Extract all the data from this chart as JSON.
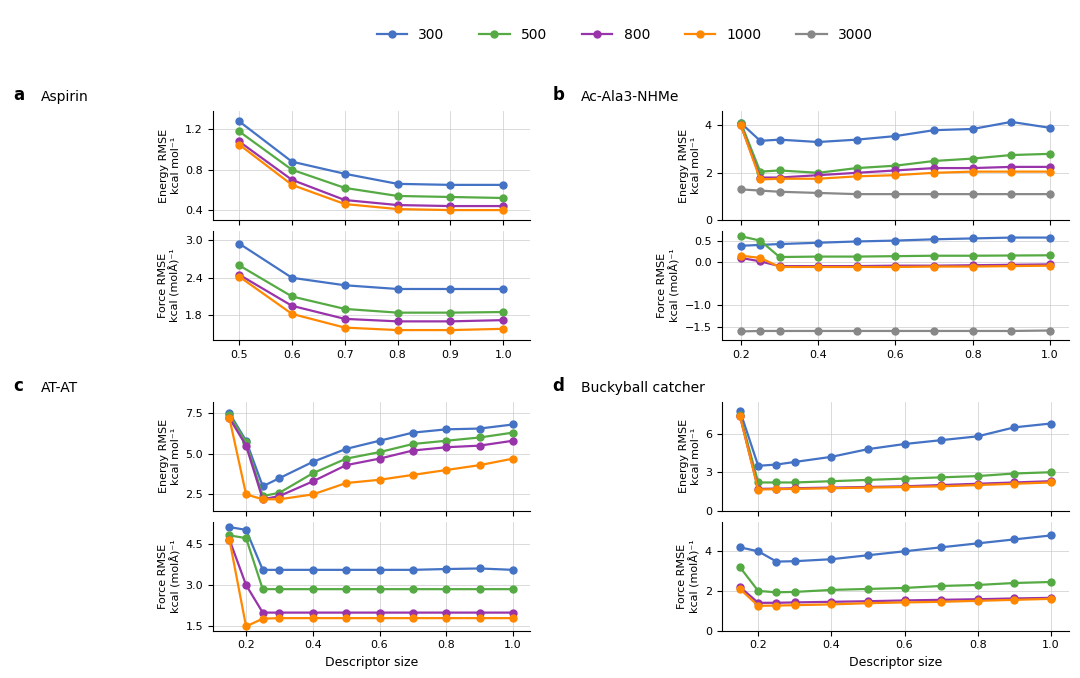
{
  "colors": {
    "300": "#4472C4",
    "500": "#55AA44",
    "800": "#9933AA",
    "1000": "#FF8800",
    "3000": "#888888"
  },
  "legend_labels": [
    "300",
    "500",
    "800",
    "1000",
    "3000"
  ],
  "xlabel": "Descriptor size",
  "a_energy": {
    "x": [
      1.0,
      0.9,
      0.8,
      0.7,
      0.6,
      0.5
    ],
    "300": [
      0.65,
      0.65,
      0.66,
      0.76,
      0.88,
      1.28
    ],
    "500": [
      0.52,
      0.53,
      0.54,
      0.62,
      0.8,
      1.18
    ],
    "800": [
      0.44,
      0.44,
      0.45,
      0.5,
      0.7,
      1.08
    ],
    "1000": [
      0.4,
      0.4,
      0.41,
      0.46,
      0.65,
      1.05
    ],
    "ylabel": "Energy RMSE\nkcal mol⁻¹",
    "ylim": [
      0.3,
      1.38
    ],
    "yticks": [
      0.4,
      0.8,
      1.2
    ],
    "xlim": [
      1.05,
      0.45
    ],
    "xticks": [
      1.0,
      0.9,
      0.8,
      0.7,
      0.6,
      0.5
    ]
  },
  "a_force": {
    "x": [
      1.0,
      0.9,
      0.8,
      0.7,
      0.6,
      0.5
    ],
    "300": [
      2.22,
      2.22,
      2.22,
      2.28,
      2.4,
      2.95
    ],
    "500": [
      1.85,
      1.84,
      1.84,
      1.9,
      2.1,
      2.6
    ],
    "800": [
      1.72,
      1.7,
      1.7,
      1.74,
      1.95,
      2.45
    ],
    "1000": [
      1.58,
      1.56,
      1.56,
      1.6,
      1.82,
      2.42
    ],
    "ylabel": "Force RMSE\nkcal (molÅ)⁻¹",
    "ylim": [
      1.4,
      3.15
    ],
    "yticks": [
      1.8,
      2.4,
      3.0
    ],
    "xlim": [
      1.05,
      0.45
    ],
    "xticks": [
      1.0,
      0.9,
      0.8,
      0.7,
      0.6,
      0.5
    ],
    "xticklabels": [
      "1.0",
      "0.9",
      "0.8",
      "0.7",
      "0.6",
      "0.5"
    ]
  },
  "b_energy": {
    "x": [
      1.0,
      0.9,
      0.8,
      0.7,
      0.6,
      0.5,
      0.4,
      0.3,
      0.25,
      0.2
    ],
    "300": [
      3.9,
      4.15,
      3.85,
      3.8,
      3.55,
      3.4,
      3.3,
      3.4,
      3.35,
      4.1
    ],
    "500": [
      2.8,
      2.75,
      2.6,
      2.5,
      2.3,
      2.2,
      2.0,
      2.1,
      2.05,
      4.1
    ],
    "800": [
      2.25,
      2.25,
      2.2,
      2.2,
      2.1,
      2.0,
      1.9,
      1.8,
      1.8,
      4.0
    ],
    "1000": [
      2.05,
      2.05,
      2.05,
      2.0,
      1.9,
      1.85,
      1.75,
      1.75,
      1.72,
      4.0
    ],
    "3000": [
      1.1,
      1.1,
      1.1,
      1.1,
      1.1,
      1.1,
      1.15,
      1.2,
      1.25,
      1.3
    ],
    "ylabel": "Energy RMSE\nkcal mol⁻¹",
    "ylim": [
      0,
      4.6
    ],
    "yticks": [
      0,
      2,
      4
    ],
    "xlim": [
      1.05,
      0.15
    ],
    "xticks": [
      1.0,
      0.8,
      0.6,
      0.4,
      0.2
    ]
  },
  "b_force": {
    "x": [
      1.0,
      0.9,
      0.8,
      0.7,
      0.6,
      0.5,
      0.4,
      0.3,
      0.25,
      0.2
    ],
    "300": [
      0.57,
      0.57,
      0.55,
      0.53,
      0.5,
      0.48,
      0.45,
      0.42,
      0.4,
      0.38
    ],
    "500": [
      0.16,
      0.155,
      0.15,
      0.15,
      0.14,
      0.13,
      0.13,
      0.12,
      0.5,
      0.6
    ],
    "800": [
      -0.05,
      -0.06,
      -0.07,
      -0.08,
      -0.08,
      -0.09,
      -0.09,
      -0.09,
      0.02,
      0.1
    ],
    "1000": [
      -0.08,
      -0.09,
      -0.1,
      -0.1,
      -0.11,
      -0.11,
      -0.11,
      -0.11,
      0.1,
      0.15
    ],
    "3000": [
      -1.58,
      -1.59,
      -1.59,
      -1.59,
      -1.59,
      -1.59,
      -1.59,
      -1.59,
      -1.59,
      -1.6
    ],
    "ylabel": "Force RMSE\nkcal (molÅ)⁻¹",
    "ylim": [
      -1.8,
      0.72
    ],
    "yticks": [
      -1.5,
      -1.0,
      0.0,
      0.5
    ],
    "xlim": [
      1.05,
      0.15
    ],
    "xticks": [
      1.0,
      0.8,
      0.6,
      0.4,
      0.2
    ],
    "xticklabels": [
      "1.0",
      "0.8",
      "0.6",
      "0.4",
      "0.2"
    ]
  },
  "c_energy": {
    "x": [
      1.0,
      0.9,
      0.8,
      0.7,
      0.6,
      0.5,
      0.4,
      0.3,
      0.25,
      0.2,
      0.15
    ],
    "300": [
      6.8,
      6.55,
      6.5,
      6.3,
      5.8,
      5.3,
      4.5,
      3.5,
      3.0,
      5.8,
      7.5
    ],
    "500": [
      6.3,
      6.0,
      5.8,
      5.6,
      5.1,
      4.7,
      3.8,
      2.6,
      2.4,
      5.7,
      7.4
    ],
    "800": [
      5.8,
      5.5,
      5.4,
      5.2,
      4.7,
      4.3,
      3.3,
      2.4,
      2.2,
      5.5,
      7.2
    ],
    "1000": [
      4.7,
      4.3,
      4.0,
      3.7,
      3.4,
      3.2,
      2.5,
      2.2,
      2.2,
      2.5,
      7.2
    ],
    "ylabel": "Energy RMSE\nkcal mol⁻¹",
    "ylim": [
      1.5,
      8.2
    ],
    "yticks": [
      2.5,
      5.0,
      7.5
    ],
    "xlim": [
      1.05,
      0.1
    ],
    "xticks": [
      1.0,
      0.8,
      0.6,
      0.4,
      0.2
    ]
  },
  "c_force": {
    "x": [
      1.0,
      0.9,
      0.8,
      0.7,
      0.6,
      0.5,
      0.4,
      0.3,
      0.25,
      0.2,
      0.15
    ],
    "300": [
      3.55,
      3.6,
      3.58,
      3.55,
      3.55,
      3.55,
      3.55,
      3.55,
      3.55,
      5.0,
      5.1
    ],
    "500": [
      2.85,
      2.85,
      2.85,
      2.85,
      2.85,
      2.85,
      2.85,
      2.85,
      2.85,
      4.7,
      4.8
    ],
    "800": [
      2.0,
      2.0,
      2.0,
      2.0,
      2.0,
      2.0,
      2.0,
      2.0,
      2.0,
      3.0,
      4.65
    ],
    "1000": [
      1.8,
      1.8,
      1.8,
      1.8,
      1.8,
      1.8,
      1.8,
      1.8,
      1.78,
      1.5,
      4.65
    ],
    "ylabel": "Force RMSE\nkcal (molÅ)⁻¹",
    "ylim": [
      1.35,
      5.3
    ],
    "yticks": [
      1.5,
      3.0,
      4.5
    ],
    "xlim": [
      1.05,
      0.1
    ],
    "xticks": [
      1.0,
      0.8,
      0.6,
      0.4,
      0.2
    ],
    "xticklabels": [
      "1.0",
      "0.8",
      "0.6",
      "0.4",
      "0.2"
    ]
  },
  "d_energy": {
    "x": [
      1.0,
      0.9,
      0.8,
      0.7,
      0.6,
      0.5,
      0.4,
      0.3,
      0.25,
      0.2,
      0.15
    ],
    "300": [
      6.8,
      6.5,
      5.8,
      5.5,
      5.2,
      4.8,
      4.2,
      3.8,
      3.6,
      3.5,
      7.8
    ],
    "500": [
      3.0,
      2.9,
      2.7,
      2.6,
      2.5,
      2.4,
      2.3,
      2.2,
      2.2,
      2.2,
      7.5
    ],
    "800": [
      2.3,
      2.2,
      2.1,
      2.0,
      1.9,
      1.85,
      1.8,
      1.75,
      1.72,
      1.7,
      7.4
    ],
    "1000": [
      2.2,
      2.1,
      2.0,
      1.9,
      1.85,
      1.8,
      1.75,
      1.7,
      1.68,
      1.65,
      7.4
    ],
    "ylabel": "Energy RMSE\nkcal mol⁻¹",
    "ylim": [
      0,
      8.5
    ],
    "yticks": [
      0,
      3,
      6
    ],
    "xlim": [
      1.05,
      0.1
    ],
    "xticks": [
      1.0,
      0.8,
      0.6,
      0.4,
      0.2
    ]
  },
  "d_force": {
    "x": [
      1.0,
      0.9,
      0.8,
      0.7,
      0.6,
      0.5,
      0.4,
      0.3,
      0.25,
      0.2,
      0.15
    ],
    "300": [
      4.8,
      4.6,
      4.4,
      4.2,
      4.0,
      3.8,
      3.6,
      3.5,
      3.48,
      4.0,
      4.2
    ],
    "500": [
      2.45,
      2.4,
      2.3,
      2.25,
      2.15,
      2.1,
      2.05,
      1.95,
      1.93,
      2.0,
      3.2
    ],
    "800": [
      1.65,
      1.62,
      1.58,
      1.55,
      1.52,
      1.48,
      1.45,
      1.42,
      1.4,
      1.4,
      2.2
    ],
    "1000": [
      1.6,
      1.55,
      1.5,
      1.45,
      1.42,
      1.38,
      1.32,
      1.28,
      1.26,
      1.25,
      2.1
    ],
    "ylabel": "Force RMSE\nkcal (molÅ)⁻¹",
    "ylim": [
      0,
      5.5
    ],
    "yticks": [
      0,
      2,
      4
    ],
    "xlim": [
      1.05,
      0.1
    ],
    "xticks": [
      1.0,
      0.8,
      0.6,
      0.4,
      0.2
    ],
    "xticklabels": [
      "1.0",
      "0.8",
      "0.6",
      "0.4",
      "0.2"
    ]
  }
}
